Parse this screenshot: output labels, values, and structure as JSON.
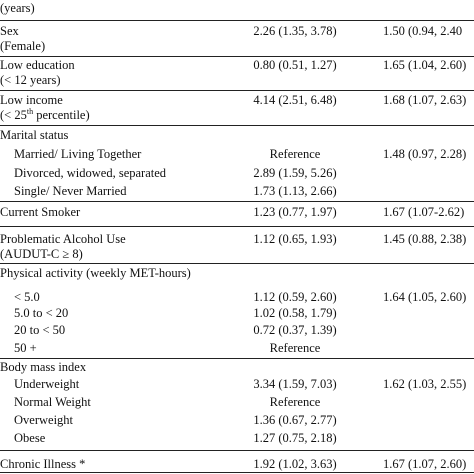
{
  "table": {
    "rows": [
      {
        "label": [
          "(years)"
        ]
      },
      {
        "label": [
          "Sex",
          "(Female)"
        ],
        "c2": "2.26 (1.35, 3.78)",
        "c3": "1.50 (0.94, 2.40"
      },
      {
        "label": [
          "Low education",
          "(< 12 years)"
        ],
        "c2": "0.80 (0.51, 1.27)",
        "c3": "1.65 (1.04, 2.60)"
      },
      {
        "label": [
          "Low income",
          [
            "(< 25",
            "th",
            " percentile)"
          ]
        ],
        "c2": "4.14 (2.51, 6.48)",
        "c3": "1.68 (1.07, 2.63)"
      },
      {
        "label": [
          "Marital status"
        ]
      },
      {
        "label": [
          "Married/ Living Together"
        ],
        "c2": "Reference",
        "c3": "1.48 (0.97, 2.28)"
      },
      {
        "label": [
          "Divorced, widowed, separated"
        ],
        "c2": "2.89 (1.59, 5.26)"
      },
      {
        "label": [
          "Single/ Never Married"
        ],
        "c2": "1.73 (1.13, 2.66)"
      },
      {
        "label": [
          "Current Smoker"
        ],
        "c2": "1.23 (0.77, 1.97)",
        "c3": "1.67 (1.07-2.62)"
      },
      {
        "label": [
          "Problematic Alcohol Use",
          "(AUDUT-C ≥ 8)"
        ],
        "c2": "1.12 (0.65, 1.93)",
        "c3": "1.45 (0.88, 2.38)"
      },
      {
        "label": [
          "Physical activity (weekly MET-hours)"
        ]
      },
      {
        "label": [
          "< 5.0"
        ],
        "c2": "1.12 (0.59, 2.60)",
        "c3": "1.64 (1.05, 2.60)"
      },
      {
        "label": [
          "5.0 to < 20"
        ],
        "c2": "1.02 (0.58, 1.79)"
      },
      {
        "label": [
          "20 to < 50"
        ],
        "c2": "0.72 (0.37, 1.39)"
      },
      {
        "label": [
          "50 +"
        ],
        "c2": "Reference"
      },
      {
        "label": [
          "Body mass index"
        ]
      },
      {
        "label": [
          "Underweight"
        ],
        "c2": "3.34 (1.59, 7.03)",
        "c3": "1.62 (1.03, 2.55)"
      },
      {
        "label": [
          "Normal Weight"
        ],
        "c2": "Reference"
      },
      {
        "label": [
          "Overweight"
        ],
        "c2": "1.36 (0.67, 2.77)"
      },
      {
        "label": [
          "Obese"
        ],
        "c2": "1.27 (0.75, 2.18)"
      },
      {
        "label": [
          "Chronic Illness *"
        ],
        "c2": "1.92 (1.02, 3.63)",
        "c3": "1.67 (1.07, 2.60)"
      }
    ]
  }
}
